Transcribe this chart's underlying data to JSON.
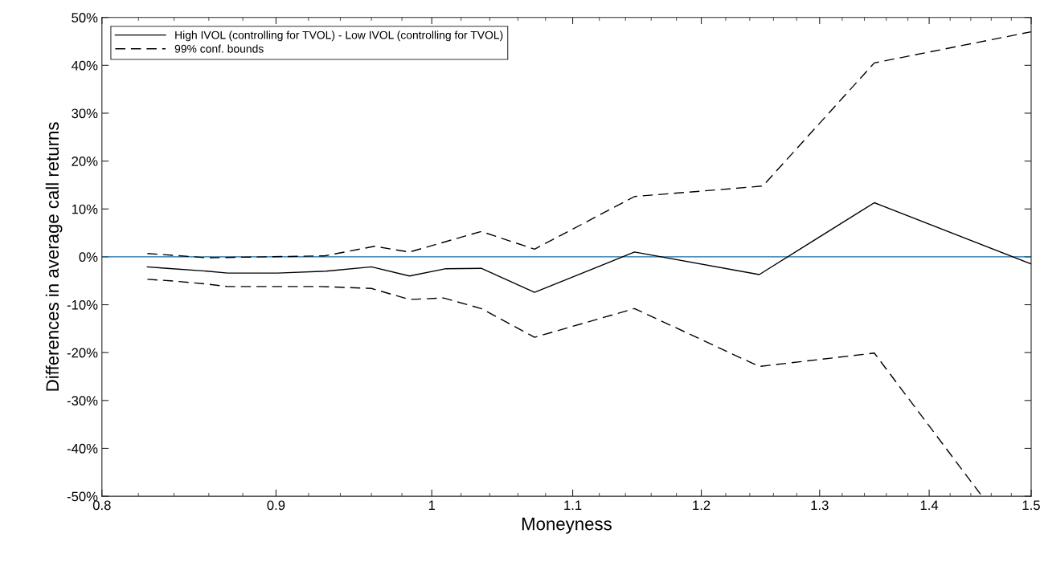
{
  "chart_data": {
    "type": "line",
    "xlabel": "Moneyness",
    "ylabel": "Differences in average call returns",
    "log": "x",
    "xlim": [
      0.8,
      1.5
    ],
    "xticks": [
      0.8,
      0.9,
      1,
      1.1,
      1.2,
      1.3,
      1.4,
      1.5
    ],
    "ylim": [
      -50,
      50
    ],
    "yticks": [
      {
        "value": -50,
        "label": "-50%"
      },
      {
        "value": -40,
        "label": "-40%"
      },
      {
        "value": -30,
        "label": "-30%"
      },
      {
        "value": -20,
        "label": "-20%"
      },
      {
        "value": -10,
        "label": "-10%"
      },
      {
        "value": 0,
        "label": "0%"
      },
      {
        "value": 10,
        "label": "10%"
      },
      {
        "value": 20,
        "label": "20%"
      },
      {
        "value": 30,
        "label": "30%"
      },
      {
        "value": 40,
        "label": "40%"
      },
      {
        "value": 50,
        "label": "50%"
      }
    ],
    "legend": "top left",
    "grid": false,
    "series": [
      {
        "name": "High IVOL (controlling for TVOL) - Low IVOL (controlling for TVOL)",
        "color": "#000000",
        "line_style": "solid",
        "x": [
          0.825,
          0.836,
          0.859,
          0.871,
          0.901,
          0.931,
          0.96,
          0.985,
          1.009,
          1.034,
          1.072,
          1.147,
          1.248,
          1.349,
          1.5
        ],
        "values": [
          -2.1,
          -2.4,
          -3.0,
          -3.4,
          -3.4,
          -3.0,
          -2.1,
          -4.0,
          -2.5,
          -2.4,
          -7.4,
          1.0,
          -3.7,
          11.3,
          -1.5
        ]
      },
      {
        "name": "99% conf. bounds",
        "color": "#000000",
        "line_style": "dashed",
        "x": [
          0.825,
          0.859,
          0.93,
          0.962,
          0.985,
          1.034,
          1.072,
          1.147,
          1.223,
          1.251,
          1.349,
          1.5
        ],
        "values": [
          0.7,
          -0.2,
          0.2,
          2.2,
          1.0,
          5.3,
          1.6,
          12.6,
          14.2,
          14.8,
          40.5,
          47
        ]
      },
      {
        "color": "#000000",
        "line_style": "dashed",
        "x": [
          0.825,
          0.838,
          0.859,
          0.871,
          0.927,
          0.96,
          0.985,
          1.008,
          1.034,
          1.072,
          1.147,
          1.248,
          1.349,
          1.451
        ],
        "values": [
          -4.7,
          -5.0,
          -5.7,
          -6.2,
          -6.2,
          -6.6,
          -8.9,
          -8.6,
          -10.8,
          -16.8,
          -10.8,
          -22.9,
          -20.1,
          -50
        ]
      }
    ],
    "ref_lines": [
      {
        "axis": "y",
        "value": 0,
        "color": "#0072bd"
      }
    ]
  }
}
